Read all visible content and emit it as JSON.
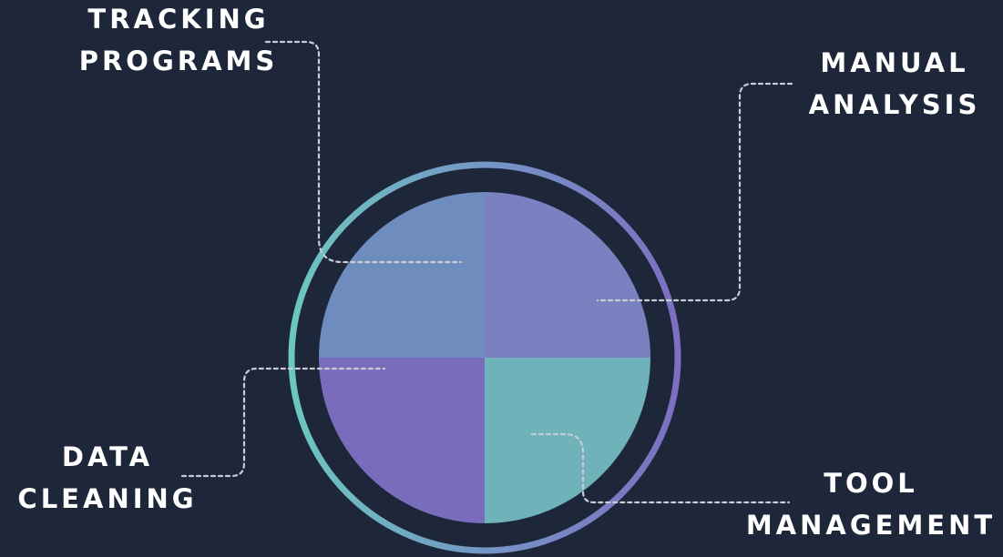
{
  "labels": {
    "tracking": [
      "TRACKING",
      "PROGRAMS"
    ],
    "manual": [
      "MANUAL",
      "ANALYSIS"
    ],
    "data": [
      "DATA",
      "CLEANING"
    ],
    "tool": [
      "TOOL",
      "MANAGEMENT"
    ]
  },
  "colors": {
    "background": "#1e2739",
    "quadrant_top_left": "#6f8cbf",
    "quadrant_top_right": "#7a81c0",
    "quadrant_bottom_left": "#7a6cbd",
    "quadrant_bottom_right": "#6fb2b9",
    "ring_left": "#6cc7c0",
    "ring_right": "#7d6fc2",
    "connector": "#c9ccd4",
    "text": "#ffffff"
  }
}
